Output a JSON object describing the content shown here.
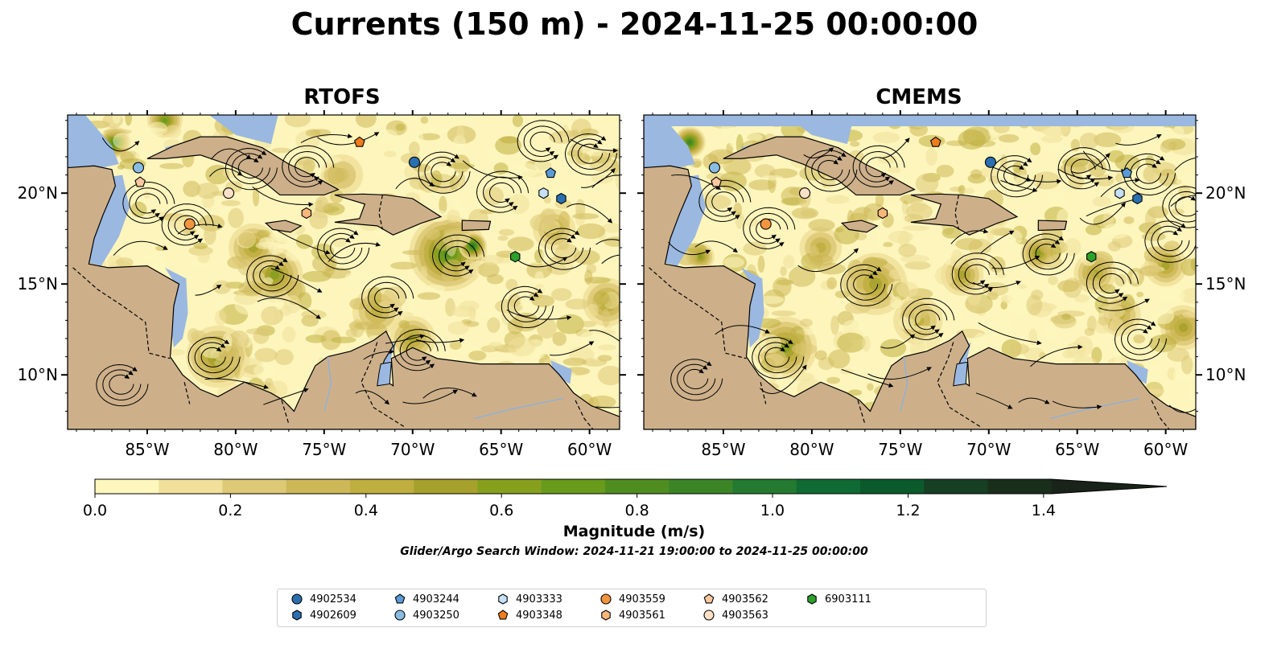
{
  "title": "Currents (150 m) - 2024-11-25 00:00:00",
  "panels": [
    {
      "title": "RTOFS"
    },
    {
      "title": "CMEMS"
    }
  ],
  "axes": {
    "x_ticks": [
      "85°W",
      "80°W",
      "75°W",
      "70°W",
      "65°W",
      "60°W"
    ],
    "y_ticks": [
      "20°N",
      "15°N",
      "10°N"
    ]
  },
  "colorbar": {
    "label": "Magnitude (m/s)",
    "ticks": [
      "0.0",
      "0.2",
      "0.4",
      "0.6",
      "0.8",
      "1.0",
      "1.2",
      "1.4"
    ],
    "range": [
      0.0,
      1.6
    ],
    "extend": "max",
    "colors": [
      "#fdf6bd",
      "#f0e09a",
      "#ddc976",
      "#cdb858",
      "#bfae40",
      "#a6a12c",
      "#86a01e",
      "#689a1c",
      "#4f8d20",
      "#3c8526",
      "#247a31",
      "#0f6b33",
      "#0b5a2c",
      "#163f24",
      "#1a2e1c",
      "#1a231a"
    ]
  },
  "subtitle": "Glider/Argo Search Window: 2024-11-21 19:00:00 to 2024-11-25 00:00:00",
  "legend": {
    "placement": "bottom",
    "items": [
      {
        "id": "4902534",
        "marker": "circle",
        "color": "#2a6fb0"
      },
      {
        "id": "4902609",
        "marker": "hexagon",
        "color": "#2a6fb0"
      },
      {
        "id": "4903244",
        "marker": "pentagon",
        "color": "#5b9bd5"
      },
      {
        "id": "4903250",
        "marker": "circle",
        "color": "#89bce3"
      },
      {
        "id": "4903333",
        "marker": "hexagon",
        "color": "#c6e0f5"
      },
      {
        "id": "4903348",
        "marker": "pentagon",
        "color": "#f07d1a"
      },
      {
        "id": "4903559",
        "marker": "circle",
        "color": "#f3953f"
      },
      {
        "id": "4903561",
        "marker": "hexagon",
        "color": "#f8b67a"
      },
      {
        "id": "4903562",
        "marker": "pentagon",
        "color": "#f9c7a0"
      },
      {
        "id": "4903563",
        "marker": "circle",
        "color": "#fde0c8"
      },
      {
        "id": "6903111",
        "marker": "hexagon",
        "color": "#2ca02c"
      }
    ]
  },
  "platforms": [
    {
      "id": "4902534",
      "lon": -69.9,
      "lat": 21.7
    },
    {
      "id": "4902609",
      "lon": -61.6,
      "lat": 19.7
    },
    {
      "id": "4903244",
      "lon": -62.2,
      "lat": 21.1
    },
    {
      "id": "4903250",
      "lon": -85.5,
      "lat": 21.4
    },
    {
      "id": "4903333",
      "lon": -62.6,
      "lat": 20.0
    },
    {
      "id": "4903348",
      "lon": -73.0,
      "lat": 22.8
    },
    {
      "id": "4903559",
      "lon": -82.6,
      "lat": 18.3
    },
    {
      "id": "4903561",
      "lon": -76.0,
      "lat": 18.9
    },
    {
      "id": "4903562",
      "lon": -85.4,
      "lat": 20.6
    },
    {
      "id": "4903563",
      "lon": -80.4,
      "lat": 20.0
    },
    {
      "id": "6903111",
      "lon": -64.2,
      "lat": 16.5
    }
  ],
  "colors": {
    "ocean_deep": "#fdf5bc",
    "land": "#cdb08a",
    "shallow_water": "#9ab8e0",
    "streamline": "#000000"
  }
}
